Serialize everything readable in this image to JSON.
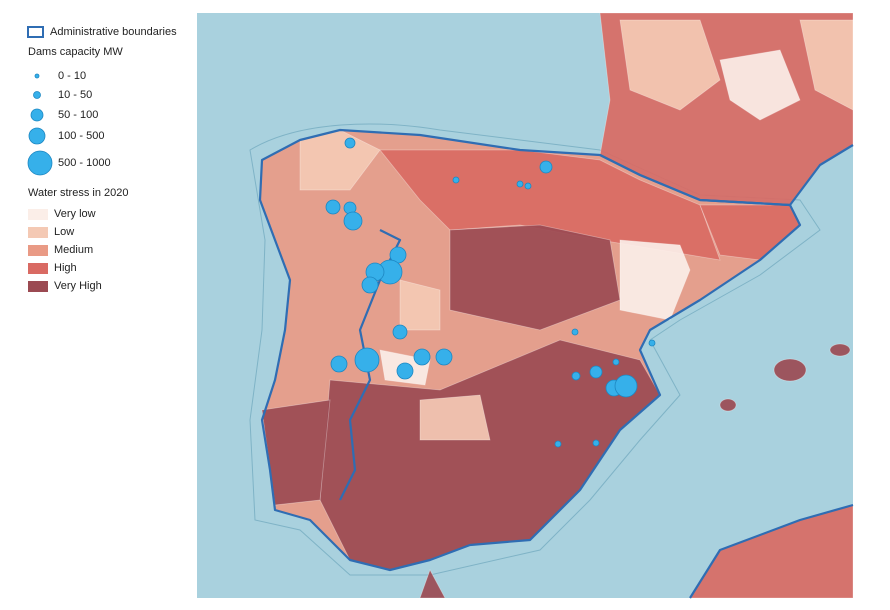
{
  "legend": {
    "boundary": "Administrative boundaries",
    "dams_title": "Dams capacity MW",
    "dams": [
      "0 - 10",
      "10 - 50",
      "50 - 100",
      "100 - 500",
      "500 - 1000"
    ],
    "stress_title": "Water stress in 2020",
    "stress": [
      "Very low",
      "Low",
      "Medium",
      "High",
      "Very High"
    ]
  }
}
